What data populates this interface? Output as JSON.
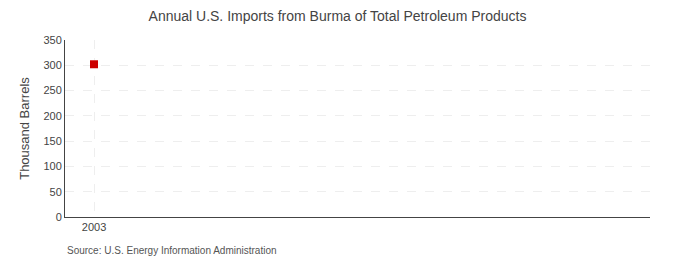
{
  "chart_data": {
    "type": "scatter",
    "title": "Annual U.S. Imports from Burma of Total Petroleum Products",
    "ylabel": "Thousand Barrels",
    "source": "Source: U.S. Energy Information Administration",
    "x": [
      2003
    ],
    "values": [
      302
    ],
    "color": "#cc0000",
    "marker": "square",
    "xlim": [
      2002.4,
      2014.5
    ],
    "xticks": [
      2003
    ],
    "ylim": [
      0,
      350
    ],
    "yticks": [
      0,
      50,
      100,
      150,
      200,
      250,
      300,
      350
    ],
    "grid": true
  }
}
